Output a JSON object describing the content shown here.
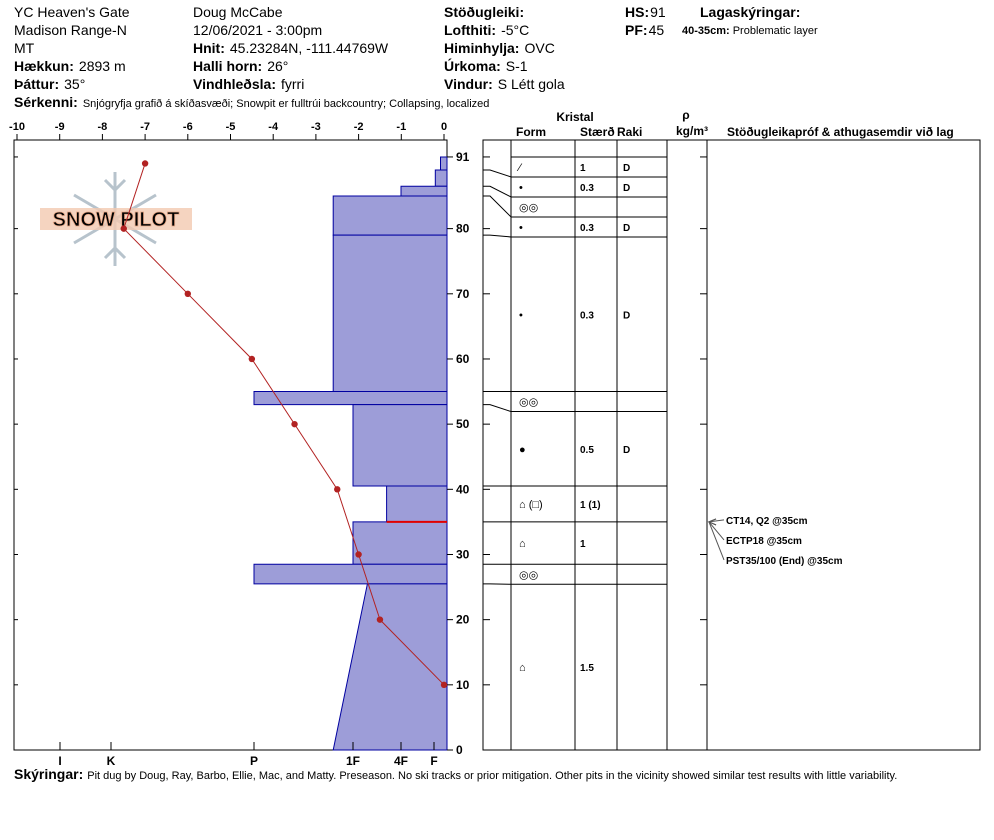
{
  "header": {
    "site": "YC Heaven's Gate",
    "range": "Madison Range-N",
    "state": "MT",
    "elevation": {
      "label": "Hækkun:",
      "value": "2893 m"
    },
    "aspect": {
      "label": "Þáttur:",
      "value": "35°"
    },
    "observer": "Doug McCabe",
    "datetime": "12/06/2021 - 3:00pm",
    "coords": {
      "label": "Hnit:",
      "value": "45.23284N, -111.44769W"
    },
    "slope": {
      "label": "Halli horn:",
      "value": "26°"
    },
    "wind_loading": {
      "label": "Vindhleðsla:",
      "value": "fyrri"
    },
    "stability_label": "Stöðugleiki:",
    "air_temp": {
      "label": "Lofthiti:",
      "value": "-5°C"
    },
    "sky": {
      "label": "Himinhylja:",
      "value": "OVC"
    },
    "precip": {
      "label": "Úrkoma:",
      "value": "S-1"
    },
    "wind": {
      "label": "Vindur:",
      "value": "S Létt gola"
    },
    "hs": {
      "label": "HS:",
      "value": 91
    },
    "pf": {
      "label": "PF:",
      "value": 45
    },
    "layer_notes_label": "Lagaskýringar:",
    "layer_notes": [
      {
        "label": "40-35cm:",
        "value": "Problematic layer"
      }
    ],
    "features": {
      "label": "Sérkenni:",
      "value": "Snjógryfja grafið á skíðasvæði;  Snowpit er fulltrúi backcountry;  Collapsing, localized"
    },
    "notes": {
      "label": "Skýringar:",
      "value": "Pit dug by Doug, Ray, Barbo, Ellie, Mac, and Matty. Preseason. No ski tracks or prior mitigation. Other pits in the vicinity showed similar test results with little variability."
    }
  },
  "table": {
    "headers": {
      "crystal": "Kristal",
      "form": "Form",
      "size": "Stærð",
      "moisture": "Raki",
      "rho": "ρ",
      "density": "kg/m³",
      "comments": "Stöðugleikapróf & athugasemdir við lag"
    }
  },
  "chart_data": {
    "type": "snow-profile",
    "watermark": "SNOW PILOT",
    "xlim": [
      -10,
      0
    ],
    "xticks": [
      -10,
      -9,
      -8,
      -7,
      -6,
      -5,
      -4,
      -3,
      -2,
      -1,
      0
    ],
    "ylim": [
      0,
      93.6
    ],
    "yticks": [
      0,
      10,
      20,
      30,
      40,
      50,
      60,
      70,
      80,
      91
    ],
    "hardness_ticks": [
      {
        "value": 1,
        "label": "F"
      },
      {
        "value": 2,
        "label": "4F"
      },
      {
        "value": 3,
        "label": "1F"
      },
      {
        "value": 4,
        "label": "P"
      },
      {
        "value": 5,
        "label": "K"
      },
      {
        "value": 6,
        "label": "I"
      }
    ],
    "temperature_color": "#b22222",
    "layer_color": "#9d9dd8",
    "temperature_profile": {
      "depth": [
        90,
        80,
        70,
        60,
        50,
        40,
        30,
        20,
        10
      ],
      "temp": [
        -7,
        -7.5,
        -6,
        -4.5,
        -3.5,
        -2.5,
        -2,
        -1.5,
        0
      ]
    },
    "layers": [
      {
        "top": 91,
        "bottom": 89,
        "hardness": 0.5,
        "form": "⁄",
        "size": 1,
        "moisture": "D"
      },
      {
        "top": 89,
        "bottom": 86.5,
        "hardness": 0.9,
        "form": "•",
        "size": 0.3,
        "moisture": "D"
      },
      {
        "top": 86.5,
        "bottom": 85,
        "hardness": 2,
        "form": "◎◎"
      },
      {
        "top": 85,
        "bottom": 79,
        "hardness": 3.2,
        "form": "•",
        "size": 0.3,
        "moisture": "D"
      },
      {
        "top": 79,
        "bottom": 55,
        "hardness": 3.2,
        "form": "•",
        "size": 0.3,
        "moisture": "D"
      },
      {
        "top": 55,
        "bottom": 53,
        "hardness": 4,
        "form": "◎◎"
      },
      {
        "top": 53,
        "bottom": 40.5,
        "hardness": 3,
        "form": "●",
        "size": 0.5,
        "moisture": "D"
      },
      {
        "top": 40.5,
        "bottom": 35,
        "hardness": 2.3,
        "form": "⌂ (□)",
        "size": "1 (1)"
      },
      {
        "top": 35,
        "bottom": 28.5,
        "hardness": 3,
        "form": "⌂",
        "size": 1
      },
      {
        "top": 28.5,
        "bottom": 25.5,
        "hardness": 4,
        "form": "◎◎"
      },
      {
        "top": 25.5,
        "bottom": 0,
        "hardness": 2.7,
        "hardness_bottom": 3.2,
        "form": "⌂",
        "size": 1.5
      }
    ],
    "tests": [
      {
        "label": "CT14, Q2 @35cm",
        "depth": 35
      },
      {
        "label": "ECTP18 @35cm",
        "depth": 35
      },
      {
        "label": "PST35/100 (End) @35cm",
        "depth": 35
      }
    ]
  }
}
